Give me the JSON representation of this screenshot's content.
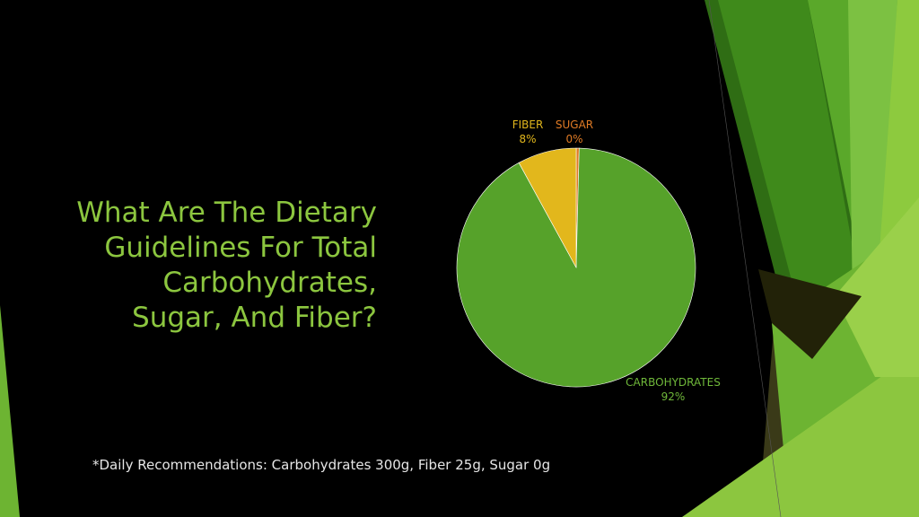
{
  "slide": {
    "title_lines": [
      "What Are The Dietary",
      "Guidelines For Total",
      "Carbohydrates,",
      "Sugar, And Fiber?"
    ],
    "footnote": "*Daily Recommendations: Carbohydrates 300g, Fiber 25g, Sugar 0g"
  },
  "colors": {
    "background": "#000000",
    "title": "#8cc63f",
    "accent_green": "#4f9d20",
    "accent_yellow": "#e2b71c",
    "accent_orange": "#e07b25"
  },
  "chart_data": {
    "type": "pie",
    "title": "",
    "slices": [
      {
        "name": "CARBOHYDRATES",
        "value": 92,
        "label": "92%",
        "color": "#56a22a",
        "label_color": "#6fb83a"
      },
      {
        "name": "FIBER",
        "value": 8,
        "label": "8%",
        "color": "#e2b71c",
        "label_color": "#e2b71c"
      },
      {
        "name": "SUGAR",
        "value": 0.4,
        "label": "0%",
        "color": "#e07b25",
        "label_color": "#e07b25"
      }
    ],
    "legend": "none"
  }
}
